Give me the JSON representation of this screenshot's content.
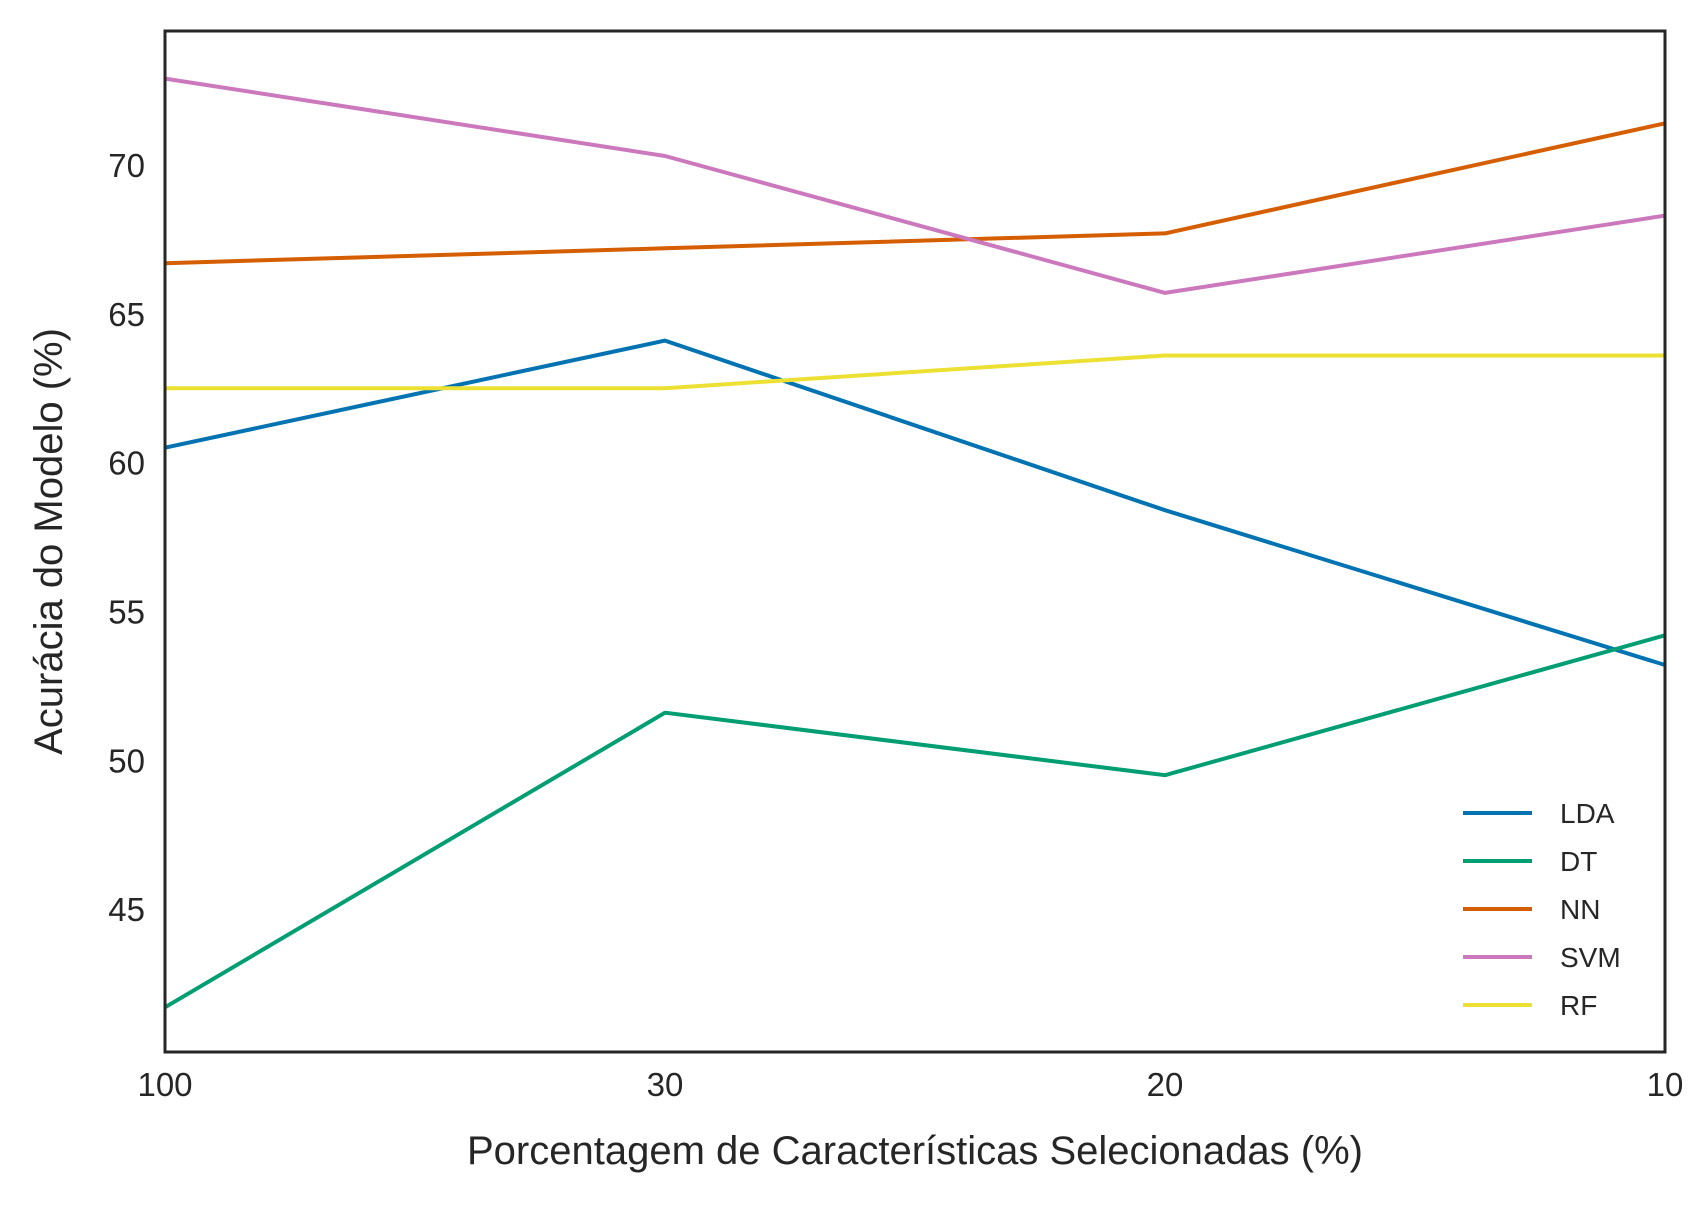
{
  "chart_data": {
    "type": "line",
    "title": "",
    "xlabel": "Porcentagem de Características Selecionadas (%)",
    "ylabel": "Acurácia do Modelo (%)",
    "categories": [
      "100",
      "30",
      "20",
      "10"
    ],
    "yticks": [
      45,
      50,
      55,
      60,
      65,
      70
    ],
    "ylim": [
      40.2,
      74.5
    ],
    "grid": false,
    "legend_position": "lower-right",
    "series": [
      {
        "name": "LDA",
        "color": "#0173b2",
        "values": [
          60.5,
          64.1,
          58.4,
          53.2
        ]
      },
      {
        "name": "DT",
        "color": "#029e73",
        "values": [
          41.7,
          51.6,
          49.5,
          54.2
        ]
      },
      {
        "name": "NN",
        "color": "#d55e00",
        "values": [
          66.7,
          67.2,
          67.7,
          71.4
        ]
      },
      {
        "name": "SVM",
        "color": "#cc78bc",
        "values": [
          72.9,
          70.3,
          65.7,
          68.3
        ]
      },
      {
        "name": "RF",
        "color": "#ece133",
        "values": [
          62.5,
          62.5,
          63.6,
          63.6
        ]
      }
    ]
  }
}
